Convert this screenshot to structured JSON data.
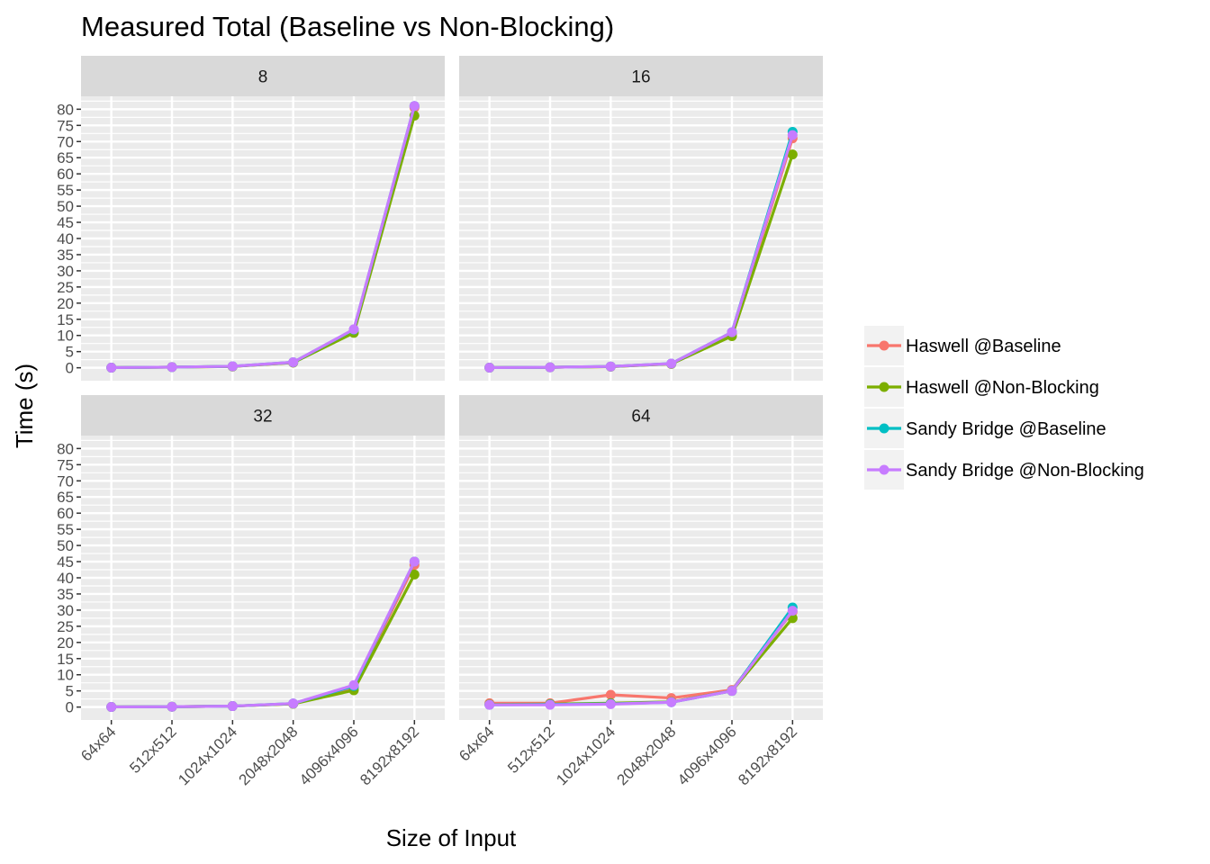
{
  "chart_data": {
    "type": "line",
    "title": "Measured Total (Baseline vs Non-Blocking)",
    "xlabel": "Size of Input",
    "ylabel": "Time (s)",
    "categories": [
      "64x64",
      "512x512",
      "1024x1024",
      "2048x2048",
      "4096x4096",
      "8192x8192"
    ],
    "ylim": [
      -4,
      84
    ],
    "yticks": [
      0,
      5,
      10,
      15,
      20,
      25,
      30,
      35,
      40,
      45,
      50,
      55,
      60,
      65,
      70,
      75,
      80
    ],
    "grid": true,
    "legend_position": "right",
    "facets": [
      {
        "label": "8",
        "series": [
          {
            "name": "Haswell @Baseline",
            "values": [
              0.05,
              0.2,
              0.4,
              1.6,
              11.5,
              80.5
            ]
          },
          {
            "name": "Haswell @Non-Blocking",
            "values": [
              0.05,
              0.2,
              0.4,
              1.6,
              10.8,
              78.0
            ]
          },
          {
            "name": "Sandy Bridge @Baseline",
            "values": [
              0.05,
              0.2,
              0.45,
              1.7,
              11.8,
              81.0
            ]
          },
          {
            "name": "Sandy Bridge @Non-Blocking",
            "values": [
              0.05,
              0.2,
              0.45,
              1.7,
              11.9,
              81.0
            ]
          }
        ]
      },
      {
        "label": "16",
        "series": [
          {
            "name": "Haswell @Baseline",
            "values": [
              0.05,
              0.15,
              0.35,
              1.2,
              10.5,
              71.0
            ]
          },
          {
            "name": "Haswell @Non-Blocking",
            "values": [
              0.05,
              0.15,
              0.35,
              1.2,
              9.8,
              66.0
            ]
          },
          {
            "name": "Sandy Bridge @Baseline",
            "values": [
              0.05,
              0.15,
              0.4,
              1.3,
              11.0,
              73.0
            ]
          },
          {
            "name": "Sandy Bridge @Non-Blocking",
            "values": [
              0.05,
              0.15,
              0.4,
              1.3,
              11.0,
              72.0
            ]
          }
        ]
      },
      {
        "label": "32",
        "series": [
          {
            "name": "Haswell @Baseline",
            "values": [
              0.05,
              0.1,
              0.3,
              1.0,
              6.0,
              44.0
            ]
          },
          {
            "name": "Haswell @Non-Blocking",
            "values": [
              0.05,
              0.1,
              0.3,
              1.0,
              5.2,
              41.0
            ]
          },
          {
            "name": "Sandy Bridge @Baseline",
            "values": [
              0.05,
              0.1,
              0.3,
              1.1,
              6.5,
              45.0
            ]
          },
          {
            "name": "Sandy Bridge @Non-Blocking",
            "values": [
              0.05,
              0.1,
              0.3,
              1.1,
              6.8,
              45.0
            ]
          }
        ]
      },
      {
        "label": "64",
        "series": [
          {
            "name": "Haswell @Baseline",
            "values": [
              1.2,
              1.2,
              3.8,
              2.8,
              5.3,
              29.5
            ]
          },
          {
            "name": "Haswell @Non-Blocking",
            "values": [
              0.8,
              0.9,
              1.2,
              1.6,
              5.0,
              27.5
            ]
          },
          {
            "name": "Sandy Bridge @Baseline",
            "values": [
              0.7,
              0.8,
              1.0,
              1.5,
              5.0,
              30.8
            ]
          },
          {
            "name": "Sandy Bridge @Non-Blocking",
            "values": [
              0.7,
              0.7,
              0.9,
              1.5,
              5.0,
              29.8
            ]
          }
        ]
      }
    ],
    "legend": [
      {
        "name": "Haswell @Baseline",
        "color": "#F8766D"
      },
      {
        "name": "Haswell @Non-Blocking",
        "color": "#7CAE00"
      },
      {
        "name": "Sandy Bridge @Baseline",
        "color": "#00BFC4"
      },
      {
        "name": "Sandy Bridge @Non-Blocking",
        "color": "#C77CFF"
      }
    ]
  }
}
